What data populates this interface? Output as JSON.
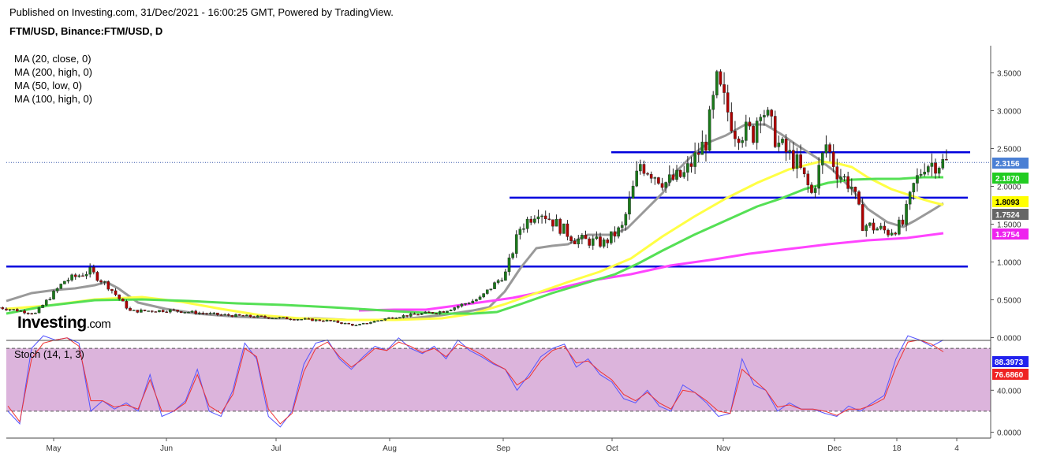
{
  "header": {
    "published": "Published on Investing.com, 31/Dec/2021 - 16:00:25 GMT, Powered by TradingView.",
    "symbol": "FTM/USD, Binance:FTM/USD, D"
  },
  "legend": {
    "items": [
      "MA (20, close, 0)",
      "MA (200, high, 0)",
      "MA (50, low, 0)",
      "MA (100, high, 0)"
    ]
  },
  "logo": {
    "name": "Investing",
    "suffix": ".com"
  },
  "chart_data": [
    {
      "type": "candlestick",
      "title": "FTM/USD, Binance:FTM/USD, D",
      "x_tick_labels": [
        "May",
        "Jun",
        "Jul",
        "Aug",
        "Sep",
        "Oct",
        "Nov",
        "Dec",
        "18",
        "4"
      ],
      "y_tick_labels": [
        "0.0000",
        "0.5000",
        "1.0000",
        "1.5000",
        "2.0000",
        "2.5000",
        "3.0000",
        "3.5000"
      ],
      "ylim": [
        0,
        3.6
      ],
      "grid": false,
      "legend": "top-left",
      "price_path": [
        {
          "date": "2021-04-15",
          "close": 0.4
        },
        {
          "date": "2021-04-25",
          "close": 0.32
        },
        {
          "date": "2021-05-03",
          "close": 0.75
        },
        {
          "date": "2021-05-10",
          "close": 0.88
        },
        {
          "date": "2021-05-15",
          "close": 0.68
        },
        {
          "date": "2021-05-21",
          "close": 0.35
        },
        {
          "date": "2021-06-01",
          "close": 0.36
        },
        {
          "date": "2021-06-15",
          "close": 0.3
        },
        {
          "date": "2021-07-01",
          "close": 0.26
        },
        {
          "date": "2021-07-15",
          "close": 0.22
        },
        {
          "date": "2021-07-22",
          "close": 0.16
        },
        {
          "date": "2021-08-01",
          "close": 0.27
        },
        {
          "date": "2021-08-15",
          "close": 0.35
        },
        {
          "date": "2021-08-25",
          "close": 0.52
        },
        {
          "date": "2021-09-01",
          "close": 0.85
        },
        {
          "date": "2021-09-05",
          "close": 1.45
        },
        {
          "date": "2021-09-10",
          "close": 1.7
        },
        {
          "date": "2021-09-20",
          "close": 1.3
        },
        {
          "date": "2021-09-28",
          "close": 1.25
        },
        {
          "date": "2021-10-03",
          "close": 1.45
        },
        {
          "date": "2021-10-08",
          "close": 2.3
        },
        {
          "date": "2021-10-15",
          "close": 2.05
        },
        {
          "date": "2021-10-20",
          "close": 2.15
        },
        {
          "date": "2021-10-26",
          "close": 2.6
        },
        {
          "date": "2021-10-29",
          "close": 3.35
        },
        {
          "date": "2021-11-03",
          "close": 2.75
        },
        {
          "date": "2021-11-08",
          "close": 2.7
        },
        {
          "date": "2021-11-10",
          "close": 3.1
        },
        {
          "date": "2021-11-15",
          "close": 2.55
        },
        {
          "date": "2021-11-20",
          "close": 2.3
        },
        {
          "date": "2021-11-24",
          "close": 1.9
        },
        {
          "date": "2021-11-28",
          "close": 2.55
        },
        {
          "date": "2021-12-01",
          "close": 2.2
        },
        {
          "date": "2021-12-05",
          "close": 2.0
        },
        {
          "date": "2021-12-08",
          "close": 1.5
        },
        {
          "date": "2021-12-15",
          "close": 1.4
        },
        {
          "date": "2021-12-19",
          "close": 1.5
        },
        {
          "date": "2021-12-22",
          "close": 2.0
        },
        {
          "date": "2021-12-25",
          "close": 2.3
        },
        {
          "date": "2021-12-31",
          "close": 2.3156
        }
      ],
      "moving_averages": [
        {
          "name": "MA (20, close, 0)",
          "color": "#999999",
          "last": 1.7524
        },
        {
          "name": "MA (200, high, 0)",
          "color": "#ff44ff",
          "last": 1.3754
        },
        {
          "name": "MA (50, low, 0)",
          "color": "#ffff44",
          "last": 1.8093
        },
        {
          "name": "MA (100, high, 0)",
          "color": "#55e055",
          "last": 2.187
        }
      ],
      "horizontal_lines": [
        0.94,
        1.85,
        2.45
      ],
      "price_labels": [
        {
          "value": "2.3156",
          "bg": "#4a7fd4",
          "fg": "#ffffff"
        },
        {
          "value": "2.1870",
          "bg": "#22cc22",
          "fg": "#ffffff"
        },
        {
          "value": "1.8093",
          "bg": "#ffff00",
          "fg": "#000000"
        },
        {
          "value": "1.7524",
          "bg": "#666666",
          "fg": "#ffffff"
        },
        {
          "value": "1.3754",
          "bg": "#ee22ee",
          "fg": "#ffffff"
        }
      ]
    },
    {
      "type": "line",
      "title": "Stoch (14, 1, 3)",
      "y_tick_labels": [
        "0.0000",
        "40.000"
      ],
      "ylim": [
        -5,
        105
      ],
      "bands": [
        20,
        80
      ],
      "series": [
        {
          "color": "#5555ff",
          "last": 88.3973,
          "values": [
            20,
            8,
            80,
            92,
            88,
            90,
            85,
            20,
            30,
            22,
            28,
            20,
            55,
            15,
            20,
            30,
            60,
            20,
            15,
            40,
            85,
            70,
            15,
            5,
            20,
            65,
            85,
            88,
            70,
            60,
            72,
            82,
            78,
            90,
            80,
            75,
            82,
            70,
            88,
            78,
            72,
            65,
            60,
            40,
            55,
            72,
            80,
            84,
            62,
            70,
            55,
            48,
            32,
            28,
            40,
            25,
            20,
            45,
            38,
            28,
            15,
            18,
            70,
            45,
            40,
            20,
            28,
            22,
            22,
            18,
            15,
            25,
            20,
            28,
            35,
            70,
            92,
            88,
            82,
            88
          ]
        },
        {
          "color": "#ee3333",
          "last": 76.686,
          "values": [
            25,
            10,
            70,
            85,
            88,
            90,
            82,
            30,
            30,
            24,
            26,
            22,
            50,
            20,
            20,
            28,
            55,
            25,
            18,
            36,
            80,
            72,
            22,
            8,
            18,
            58,
            80,
            86,
            72,
            62,
            70,
            80,
            78,
            86,
            82,
            76,
            80,
            72,
            84,
            80,
            74,
            66,
            60,
            45,
            52,
            68,
            78,
            82,
            66,
            68,
            58,
            50,
            36,
            30,
            38,
            28,
            22,
            40,
            38,
            30,
            20,
            18,
            60,
            50,
            40,
            24,
            26,
            22,
            22,
            20,
            16,
            22,
            22,
            26,
            32,
            62,
            86,
            88,
            84,
            76.686
          ]
        }
      ],
      "price_labels": [
        {
          "value": "88.3973",
          "bg": "#2222ee",
          "fg": "#ffffff"
        },
        {
          "value": "76.6860",
          "bg": "#ee2222",
          "fg": "#ffffff"
        }
      ]
    }
  ]
}
